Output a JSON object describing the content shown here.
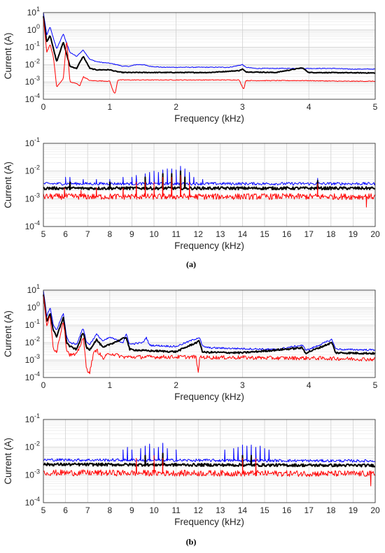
{
  "chart_data": [
    {
      "type": "line",
      "panel": "a-low",
      "xlabel": "Frequency (kHz)",
      "ylabel": "Current (A)",
      "xlim": [
        0,
        5
      ],
      "ylim": [
        0.0001,
        10
      ],
      "yscale": "log",
      "grid": true,
      "xticks": [
        "0",
        "1",
        "2",
        "3",
        "4",
        "5"
      ],
      "series": [
        {
          "color": "#0000ff",
          "x": [
            0,
            0.05,
            0.1,
            0.2,
            0.3,
            0.4,
            0.5,
            0.6,
            0.7,
            0.8,
            0.9,
            1.0,
            1.1,
            1.2,
            1.3,
            1.4,
            1.5,
            1.6,
            1.8,
            2.0,
            2.2,
            2.4,
            2.6,
            2.8,
            2.95,
            3.0,
            3.05,
            3.2,
            3.4,
            3.6,
            3.8,
            3.9,
            4.0,
            4.2,
            4.4,
            4.6,
            4.8,
            5.0
          ],
          "y": [
            10,
            0.5,
            1.5,
            0.08,
            0.6,
            0.05,
            0.03,
            0.07,
            0.02,
            0.015,
            0.013,
            0.012,
            0.01,
            0.008,
            0.008,
            0.01,
            0.01,
            0.008,
            0.007,
            0.007,
            0.007,
            0.007,
            0.007,
            0.007,
            0.009,
            0.01,
            0.007,
            0.006,
            0.006,
            0.006,
            0.006,
            0.006,
            0.006,
            0.006,
            0.006,
            0.0055,
            0.0055,
            0.0055
          ]
        },
        {
          "color": "#000000",
          "x": [
            0,
            0.05,
            0.1,
            0.2,
            0.3,
            0.4,
            0.5,
            0.6,
            0.7,
            0.8,
            0.9,
            1.0,
            1.1,
            1.2,
            1.5,
            2.0,
            2.5,
            2.95,
            3.0,
            3.05,
            3.5,
            3.9,
            4.0,
            4.5,
            5.0
          ],
          "y": [
            6,
            0.2,
            0.5,
            0.015,
            0.2,
            0.008,
            0.006,
            0.03,
            0.006,
            0.005,
            0.005,
            0.005,
            0.004,
            0.0035,
            0.0035,
            0.0035,
            0.0035,
            0.0045,
            0.0055,
            0.0038,
            0.0035,
            0.0065,
            0.0035,
            0.0034,
            0.0033
          ]
        },
        {
          "color": "#ff0000",
          "x": [
            0,
            0.05,
            0.1,
            0.15,
            0.2,
            0.3,
            0.35,
            0.4,
            0.5,
            0.55,
            0.6,
            0.7,
            1.0,
            1.05,
            1.08,
            1.12,
            1.2,
            1.5,
            2.0,
            2.5,
            2.95,
            3.0,
            3.02,
            3.05,
            3.5,
            3.9,
            3.95,
            4.5,
            5.0
          ],
          "y": [
            5,
            0.05,
            0.15,
            0.03,
            0.0005,
            0.0015,
            0.3,
            0.001,
            0.0008,
            0.0006,
            0.002,
            0.0012,
            0.0011,
            0.0003,
            0.0002,
            0.0013,
            0.0013,
            0.0013,
            0.0013,
            0.0013,
            0.0013,
            0.0005,
            0.0004,
            0.0012,
            0.0012,
            0.0012,
            0.0012,
            0.0011,
            0.0011
          ]
        }
      ]
    },
    {
      "type": "line",
      "panel": "a-high",
      "xlabel": "Frequency (kHz)",
      "ylabel": "Current (A)",
      "xlim": [
        5,
        20
      ],
      "ylim": [
        0.0001,
        0.1
      ],
      "yscale": "log",
      "grid": true,
      "xticks": [
        "5",
        "6",
        "7",
        "8",
        "9",
        "10",
        "11",
        "12",
        "13",
        "14",
        "15",
        "16",
        "17",
        "18",
        "19",
        "20"
      ],
      "series": [
        {
          "color": "#0000ff",
          "x": [
            5,
            20
          ],
          "y": [
            0.0035,
            0.0035
          ],
          "peaks": [
            [
              6.0,
              0.006
            ],
            [
              6.2,
              0.006
            ],
            [
              6.8,
              0.005
            ],
            [
              7.4,
              0.005
            ],
            [
              8.0,
              0.005
            ],
            [
              8.6,
              0.006
            ],
            [
              9.0,
              0.006
            ],
            [
              9.2,
              0.007
            ],
            [
              9.6,
              0.008
            ],
            [
              9.8,
              0.009
            ],
            [
              10.0,
              0.01
            ],
            [
              10.2,
              0.009
            ],
            [
              10.4,
              0.011
            ],
            [
              10.6,
              0.012
            ],
            [
              10.8,
              0.012
            ],
            [
              11.0,
              0.011
            ],
            [
              11.2,
              0.015
            ],
            [
              11.4,
              0.012
            ],
            [
              11.6,
              0.009
            ],
            [
              11.8,
              0.006
            ],
            [
              12.2,
              0.005
            ],
            [
              17.4,
              0.0055
            ]
          ]
        },
        {
          "color": "#000000",
          "x": [
            5,
            20
          ],
          "y": [
            0.0024,
            0.0024
          ],
          "peaks": [
            [
              6.2,
              0.004
            ],
            [
              8.0,
              0.004
            ],
            [
              9.6,
              0.006
            ],
            [
              10.4,
              0.008
            ],
            [
              10.8,
              0.008
            ],
            [
              11.2,
              0.01
            ],
            [
              11.4,
              0.006
            ],
            [
              17.4,
              0.0045
            ]
          ]
        },
        {
          "color": "#ff0000",
          "x": [
            5,
            20
          ],
          "y": [
            0.0012,
            0.0012
          ],
          "peaks": [
            [
              5.95,
              0.0025
            ],
            [
              6.7,
              0.002
            ],
            [
              7.4,
              0.0025
            ],
            [
              8.6,
              0.0025
            ],
            [
              9.2,
              0.004
            ],
            [
              9.6,
              0.004
            ],
            [
              10.0,
              0.004
            ],
            [
              10.4,
              0.006
            ],
            [
              10.8,
              0.006
            ],
            [
              11.2,
              0.007
            ],
            [
              11.6,
              0.004
            ],
            [
              17.4,
              0.0035
            ]
          ],
          "dips": [
            [
              19.6,
              0.0005
            ]
          ]
        }
      ]
    },
    {
      "type": "line",
      "panel": "b-low",
      "xlabel": "Frequency (kHz)",
      "ylabel": "Current (A)",
      "xlim": [
        0,
        5
      ],
      "ylim": [
        0.0001,
        10
      ],
      "yscale": "log",
      "grid": true,
      "xticks": [
        "0",
        "1",
        "2",
        "3",
        "4",
        "5"
      ],
      "series": [
        {
          "color": "#0000ff",
          "x": [
            0,
            0.05,
            0.1,
            0.15,
            0.2,
            0.3,
            0.35,
            0.4,
            0.5,
            0.6,
            0.65,
            0.7,
            0.8,
            0.9,
            1.0,
            1.2,
            1.25,
            1.3,
            1.5,
            1.55,
            1.6,
            2.0,
            2.35,
            2.4,
            2.5,
            3.0,
            3.5,
            3.9,
            3.95,
            4.0,
            4.35,
            4.4,
            4.5,
            5.0
          ],
          "y": [
            10,
            0.3,
            1.0,
            0.1,
            0.05,
            0.5,
            0.02,
            0.01,
            0.008,
            0.07,
            0.01,
            0.008,
            0.03,
            0.012,
            0.02,
            0.01,
            0.03,
            0.008,
            0.01,
            0.02,
            0.007,
            0.006,
            0.02,
            0.006,
            0.005,
            0.0045,
            0.004,
            0.007,
            0.004,
            0.004,
            0.015,
            0.0045,
            0.004,
            0.0038
          ]
        },
        {
          "color": "#000000",
          "x": [
            0,
            0.05,
            0.1,
            0.15,
            0.2,
            0.3,
            0.35,
            0.4,
            0.5,
            0.6,
            0.65,
            0.7,
            0.8,
            0.9,
            1.0,
            1.25,
            1.3,
            1.5,
            2.0,
            2.35,
            2.4,
            3.0,
            3.9,
            3.95,
            4.35,
            4.4,
            5.0
          ],
          "y": [
            6,
            0.15,
            0.5,
            0.05,
            0.02,
            0.3,
            0.01,
            0.006,
            0.004,
            0.04,
            0.005,
            0.004,
            0.015,
            0.005,
            0.008,
            0.02,
            0.004,
            0.0035,
            0.003,
            0.012,
            0.0028,
            0.0026,
            0.005,
            0.0025,
            0.01,
            0.0026,
            0.0024
          ]
        },
        {
          "color": "#ff0000",
          "x": [
            0,
            0.05,
            0.1,
            0.15,
            0.2,
            0.3,
            0.35,
            0.4,
            0.5,
            0.6,
            0.65,
            0.7,
            0.75,
            0.8,
            0.9,
            1.0,
            1.2,
            1.5,
            2.0,
            2.3,
            2.33,
            2.36,
            2.5,
            3.0,
            3.5,
            4.0,
            4.5,
            5.0
          ],
          "y": [
            5,
            0.1,
            0.3,
            0.005,
            0.003,
            0.2,
            0.004,
            0.002,
            0.002,
            0.02,
            0.0003,
            0.0002,
            0.002,
            0.004,
            0.0012,
            0.0025,
            0.0015,
            0.0015,
            0.0015,
            0.0015,
            0.0002,
            0.0015,
            0.0014,
            0.0014,
            0.0013,
            0.0013,
            0.0012,
            0.0011
          ]
        }
      ]
    },
    {
      "type": "line",
      "panel": "b-high",
      "xlabel": "Frequency (kHz)",
      "ylabel": "Current (A)",
      "xlim": [
        5,
        20
      ],
      "ylim": [
        0.0001,
        0.1
      ],
      "yscale": "log",
      "grid": true,
      "xticks": [
        "5",
        "6",
        "7",
        "8",
        "9",
        "10",
        "11",
        "12",
        "13",
        "14",
        "15",
        "16",
        "17",
        "18",
        "19",
        "20"
      ],
      "series": [
        {
          "color": "#0000ff",
          "x": [
            5,
            20
          ],
          "y": [
            0.0035,
            0.0032
          ],
          "peaks": [
            [
              8.6,
              0.008
            ],
            [
              8.8,
              0.01
            ],
            [
              9.0,
              0.008
            ],
            [
              9.4,
              0.009
            ],
            [
              9.6,
              0.011
            ],
            [
              9.8,
              0.013
            ],
            [
              10.0,
              0.009
            ],
            [
              10.2,
              0.01
            ],
            [
              10.4,
              0.014
            ],
            [
              10.6,
              0.009
            ],
            [
              11.0,
              0.008
            ],
            [
              13.2,
              0.008
            ],
            [
              13.6,
              0.009
            ],
            [
              13.8,
              0.01
            ],
            [
              14.0,
              0.012
            ],
            [
              14.2,
              0.011
            ],
            [
              14.4,
              0.012
            ],
            [
              14.6,
              0.01
            ],
            [
              14.8,
              0.011
            ],
            [
              15.0,
              0.009
            ],
            [
              15.2,
              0.008
            ]
          ]
        },
        {
          "color": "#000000",
          "x": [
            5,
            20
          ],
          "y": [
            0.0024,
            0.0022
          ],
          "peaks": [
            [
              9.6,
              0.005
            ],
            [
              10.4,
              0.006
            ],
            [
              14.0,
              0.005
            ],
            [
              14.4,
              0.005
            ]
          ]
        },
        {
          "color": "#ff0000",
          "x": [
            5,
            20
          ],
          "y": [
            0.0012,
            0.0011
          ],
          "peaks": [
            [
              9.2,
              0.004
            ],
            [
              10.0,
              0.005
            ],
            [
              10.4,
              0.004
            ],
            [
              14.0,
              0.004
            ],
            [
              14.6,
              0.004
            ]
          ],
          "dips": [
            [
              19.8,
              0.0004
            ]
          ]
        }
      ]
    }
  ],
  "captions": {
    "a": "(a)",
    "b": "(b)"
  }
}
